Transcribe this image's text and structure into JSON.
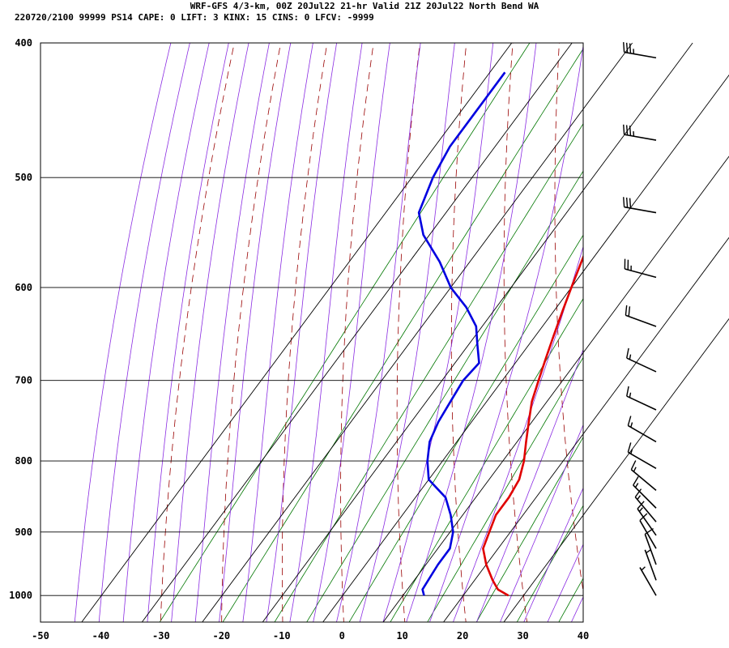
{
  "header": {
    "title": "WRF-GFS 4/3-km, 00Z 20Jul22 21-hr Valid 21Z 20Jul22 North Bend WA",
    "info": "220720/2100 99999  PS14    CAPE:      0 LIFT:     3 KINX:    15 CINS:     0 LFCV: -9999"
  },
  "colors": {
    "temperature": "#e00000",
    "dewpoint": "#0000e0",
    "isotherm_grid": "#000000",
    "dry_adiabat": "#990000",
    "moist_adiabat": "#8a2be2",
    "mixing_ratio": "#007700"
  },
  "chart_data": {
    "type": "skew-t",
    "x_axis": {
      "label": "",
      "ticks": [
        -50,
        -40,
        -30,
        -20,
        -10,
        0,
        10,
        20,
        30,
        40
      ],
      "range": [
        -50,
        40
      ]
    },
    "y_axis": {
      "label": "",
      "ticks": [
        400,
        500,
        600,
        700,
        800,
        900,
        1000
      ],
      "range": [
        400,
        1045
      ],
      "scale": "log-pressure"
    },
    "series": [
      {
        "key": "temperature",
        "points": [
          [
            1000,
            27.5
          ],
          [
            990,
            25
          ],
          [
            975,
            23
          ],
          [
            950,
            20
          ],
          [
            925,
            17.5
          ],
          [
            900,
            16.5
          ],
          [
            875,
            15.5
          ],
          [
            850,
            15.5
          ],
          [
            825,
            15
          ],
          [
            800,
            13.5
          ],
          [
            775,
            11.5
          ],
          [
            750,
            9.5
          ],
          [
            725,
            7.5
          ],
          [
            700,
            6
          ],
          [
            675,
            4.5
          ],
          [
            650,
            3
          ],
          [
            625,
            1.5
          ],
          [
            600,
            0
          ],
          [
            575,
            -1.5
          ],
          [
            550,
            -3
          ],
          [
            530,
            -5
          ],
          [
            500,
            -8
          ],
          [
            470,
            -11
          ],
          [
            450,
            -13
          ],
          [
            420,
            -16.5
          ]
        ]
      },
      {
        "key": "dewpoint",
        "points": [
          [
            1000,
            13.5
          ],
          [
            990,
            12.5
          ],
          [
            950,
            12
          ],
          [
            925,
            12
          ],
          [
            900,
            10.5
          ],
          [
            875,
            8
          ],
          [
            850,
            5
          ],
          [
            825,
            0
          ],
          [
            800,
            -2.5
          ],
          [
            775,
            -4.5
          ],
          [
            750,
            -5.5
          ],
          [
            725,
            -6
          ],
          [
            700,
            -6.5
          ],
          [
            680,
            -6
          ],
          [
            660,
            -8.5
          ],
          [
            640,
            -11
          ],
          [
            620,
            -15
          ],
          [
            600,
            -20
          ],
          [
            575,
            -25
          ],
          [
            550,
            -31
          ],
          [
            530,
            -34.5
          ],
          [
            500,
            -36.5
          ],
          [
            475,
            -37.5
          ],
          [
            450,
            -37.5
          ],
          [
            420,
            -37.5
          ]
        ]
      }
    ],
    "wind_barbs": [
      {
        "pressure": 410,
        "speed_kt": 35,
        "direction": 260
      },
      {
        "pressure": 470,
        "speed_kt": 35,
        "direction": 260
      },
      {
        "pressure": 530,
        "speed_kt": 30,
        "direction": 260
      },
      {
        "pressure": 590,
        "speed_kt": 25,
        "direction": 255
      },
      {
        "pressure": 640,
        "speed_kt": 20,
        "direction": 250
      },
      {
        "pressure": 690,
        "speed_kt": 15,
        "direction": 245
      },
      {
        "pressure": 735,
        "speed_kt": 15,
        "direction": 245
      },
      {
        "pressure": 775,
        "speed_kt": 15,
        "direction": 240
      },
      {
        "pressure": 810,
        "speed_kt": 15,
        "direction": 240
      },
      {
        "pressure": 840,
        "speed_kt": 15,
        "direction": 230
      },
      {
        "pressure": 865,
        "speed_kt": 15,
        "direction": 225
      },
      {
        "pressure": 885,
        "speed_kt": 15,
        "direction": 220
      },
      {
        "pressure": 905,
        "speed_kt": 15,
        "direction": 215
      },
      {
        "pressure": 925,
        "speed_kt": 10,
        "direction": 210
      },
      {
        "pressure": 950,
        "speed_kt": 10,
        "direction": 200
      },
      {
        "pressure": 975,
        "speed_kt": 5,
        "direction": 200
      },
      {
        "pressure": 1000,
        "speed_kt": 5,
        "direction": 210
      }
    ],
    "background": {
      "isotherms_visible": true,
      "dry_adiabats_visible": true,
      "moist_adiabats_visible": true,
      "mixing_ratio_lines_visible": true
    }
  }
}
